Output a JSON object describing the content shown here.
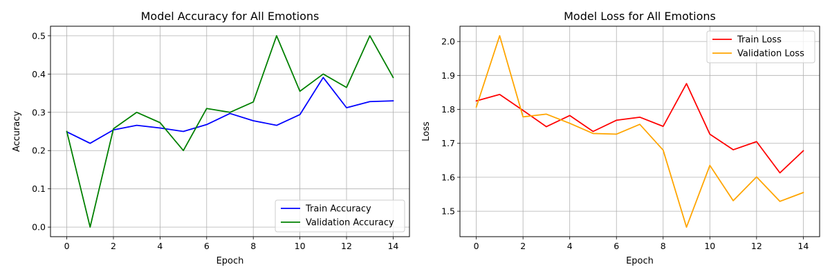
{
  "chart_data": [
    {
      "type": "line",
      "title": "Model Accuracy for All Emotions",
      "xlabel": "Epoch",
      "ylabel": "Accuracy",
      "x": [
        0,
        1,
        2,
        3,
        4,
        5,
        6,
        7,
        8,
        9,
        10,
        11,
        12,
        13,
        14
      ],
      "xlim": [
        -0.7,
        14.7
      ],
      "ylim": [
        -0.025,
        0.525
      ],
      "xticks": [
        0,
        2,
        4,
        6,
        8,
        10,
        12,
        14
      ],
      "yticks": [
        0.0,
        0.1,
        0.2,
        0.3,
        0.4,
        0.5
      ],
      "xtick_labels": [
        "0",
        "2",
        "4",
        "6",
        "8",
        "10",
        "12",
        "14"
      ],
      "ytick_labels": [
        "0.0",
        "0.1",
        "0.2",
        "0.3",
        "0.4",
        "0.5"
      ],
      "grid": true,
      "legend_position": "lower-right",
      "series": [
        {
          "name": "Train Accuracy",
          "color": "#0000ff",
          "values": [
            0.249,
            0.219,
            0.254,
            0.266,
            0.259,
            0.25,
            0.268,
            0.297,
            0.278,
            0.266,
            0.294,
            0.391,
            0.312,
            0.328,
            0.33
          ]
        },
        {
          "name": "Validation Accuracy",
          "color": "#008000",
          "values": [
            0.25,
            0.0,
            0.257,
            0.3,
            0.273,
            0.2,
            0.31,
            0.3,
            0.327,
            0.5,
            0.355,
            0.4,
            0.365,
            0.5,
            0.391
          ]
        }
      ]
    },
    {
      "type": "line",
      "title": "Model Loss for All Emotions",
      "xlabel": "Epoch",
      "ylabel": "Loss",
      "x": [
        0,
        1,
        2,
        3,
        4,
        5,
        6,
        7,
        8,
        9,
        10,
        11,
        12,
        13,
        14
      ],
      "xlim": [
        -0.7,
        14.7
      ],
      "ylim": [
        1.425,
        2.045
      ],
      "xticks": [
        0,
        2,
        4,
        6,
        8,
        10,
        12,
        14
      ],
      "yticks": [
        1.5,
        1.6,
        1.7,
        1.8,
        1.9,
        2.0
      ],
      "xtick_labels": [
        "0",
        "2",
        "4",
        "6",
        "8",
        "10",
        "12",
        "14"
      ],
      "ytick_labels": [
        "1.5",
        "1.6",
        "1.7",
        "1.8",
        "1.9",
        "2.0"
      ],
      "grid": true,
      "legend_position": "upper-right",
      "series": [
        {
          "name": "Train Loss",
          "color": "#ff0000",
          "values": [
            1.825,
            1.844,
            1.797,
            1.749,
            1.782,
            1.735,
            1.768,
            1.777,
            1.75,
            1.876,
            1.727,
            1.681,
            1.705,
            1.613,
            1.678
          ]
        },
        {
          "name": "Validation Loss",
          "color": "#ffa500",
          "values": [
            1.807,
            2.017,
            1.778,
            1.786,
            1.759,
            1.729,
            1.727,
            1.756,
            1.68,
            1.453,
            1.635,
            1.531,
            1.601,
            1.529,
            1.555
          ]
        }
      ]
    }
  ]
}
